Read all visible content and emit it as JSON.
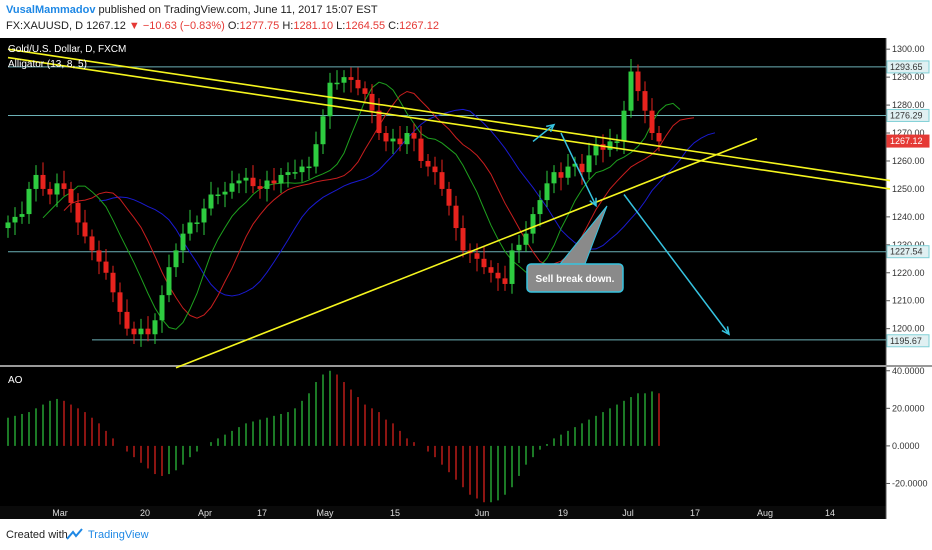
{
  "header": {
    "author": "VusalMammadov",
    "published_text": "published on TradingView.com, June 11, 2017 15:07 EST",
    "symbol": "FX:XAUUSD, D",
    "last": "1267.12",
    "change": "−10.63 (−0.83%)",
    "o_label": "O:",
    "o_value": "1277.75",
    "h_label": "H:",
    "h_value": "1281.10",
    "l_label": "L:",
    "l_value": "1264.55",
    "c_label": "C:",
    "c_value": "1267.12"
  },
  "pane": {
    "title": "Gold/U.S. Dollar, D, FXCM",
    "indicator": "Alligator (13, 8, 5)",
    "ao_label": "AO"
  },
  "annotation": {
    "text": "Sell break down."
  },
  "footer": {
    "created_with": "Created with",
    "brand": "TradingView"
  },
  "colors": {
    "background": "#000000",
    "bull": "#2ecc40",
    "bear": "#e8231e",
    "trendline": "#f5f51e",
    "arrow": "#36c3e0",
    "level": "#7fd0d6",
    "jaw": "#1a1ad0",
    "teeth": "#c81e1e",
    "lips": "#1ea01e"
  },
  "chart_data": [
    {
      "type": "candlestick",
      "title": "Gold/U.S. Dollar, D, FXCM",
      "y_axis_ticks": [
        1200,
        1210,
        1220,
        1230,
        1240,
        1250,
        1260,
        1270,
        1280,
        1290,
        1300
      ],
      "ylim": [
        1187,
        1304
      ],
      "x_tick_labels": [
        "Mar",
        "20",
        "Apr",
        "17",
        "May",
        "15",
        "Jun",
        "19",
        "Jul",
        "17",
        "Aug",
        "14"
      ],
      "price_labels": [
        {
          "value": 1293.65,
          "text": "1293.65",
          "style": "level"
        },
        {
          "value": 1276.29,
          "text": "1276.29",
          "style": "level"
        },
        {
          "value": 1267.12,
          "text": "1267.12",
          "style": "last"
        },
        {
          "value": 1227.54,
          "text": "1227.54",
          "style": "level"
        },
        {
          "value": 1195.67,
          "text": "1195.67",
          "style": "level"
        }
      ],
      "closes": [
        1238,
        1240,
        1241,
        1250,
        1255,
        1250,
        1248,
        1252,
        1250,
        1245,
        1238,
        1233,
        1228,
        1224,
        1220,
        1213,
        1206,
        1200,
        1198,
        1200,
        1198,
        1203,
        1212,
        1222,
        1228,
        1234,
        1238,
        1238,
        1243,
        1248,
        1248,
        1249,
        1252,
        1253,
        1254,
        1251,
        1250,
        1253,
        1252,
        1255,
        1256,
        1256,
        1258,
        1258,
        1266,
        1276,
        1288,
        1288,
        1290,
        1289,
        1286,
        1284,
        1278,
        1270,
        1267,
        1268,
        1266,
        1270,
        1268,
        1260,
        1258,
        1256,
        1250,
        1244,
        1236,
        1228,
        1227,
        1225,
        1222,
        1220,
        1218,
        1216,
        1228,
        1230,
        1234,
        1241,
        1246,
        1252,
        1256,
        1254,
        1258,
        1259,
        1256,
        1262,
        1266,
        1264,
        1267,
        1267,
        1278,
        1292,
        1285,
        1278,
        1270,
        1267
      ],
      "alligator": {
        "jaw_period": 13,
        "teeth_period": 8,
        "lips_period": 5
      },
      "trendlines": [
        {
          "from": [
            0,
            1300
          ],
          "to": [
            126,
            1253
          ]
        },
        {
          "from": [
            0,
            1297
          ],
          "to": [
            126,
            1250
          ]
        },
        {
          "from": [
            24,
            1186
          ],
          "to": [
            107,
            1268
          ]
        },
        {
          "from": [
            12,
            1196
          ],
          "to": [
            126,
            1196
          ],
          "style": "level"
        },
        {
          "from": [
            0,
            1293.65
          ],
          "to": [
            126,
            1293.65
          ],
          "style": "level"
        },
        {
          "from": [
            0,
            1276.29
          ],
          "to": [
            126,
            1276.29
          ],
          "style": "level"
        },
        {
          "from": [
            0,
            1227.54
          ],
          "to": [
            126,
            1227.54
          ],
          "style": "level"
        }
      ],
      "arrows": [
        {
          "from": [
            75,
            1267
          ],
          "to": [
            78,
            1273
          ]
        },
        {
          "from": [
            79,
            1270
          ],
          "to": [
            84,
            1244
          ]
        },
        {
          "from": [
            88,
            1248
          ],
          "to": [
            103,
            1198
          ]
        }
      ]
    },
    {
      "type": "bar",
      "title": "AO",
      "y_axis_ticks": [
        -20,
        0,
        20,
        40
      ],
      "ylim": [
        -32,
        42
      ],
      "values": [
        15,
        16,
        17,
        18,
        20,
        22,
        24,
        25,
        24,
        22,
        20,
        18,
        15,
        12,
        8,
        4,
        0,
        -3,
        -6,
        -9,
        -12,
        -15,
        -16,
        -15,
        -13,
        -10,
        -6,
        -3,
        0,
        2,
        4,
        6,
        8,
        10,
        12,
        13,
        14,
        15,
        16,
        17,
        18,
        20,
        24,
        28,
        34,
        38,
        40,
        38,
        34,
        30,
        26,
        22,
        20,
        18,
        14,
        12,
        8,
        4,
        2,
        0,
        -3,
        -6,
        -10,
        -14,
        -18,
        -22,
        -26,
        -28,
        -30,
        -30,
        -29,
        -26,
        -22,
        -16,
        -10,
        -6,
        -2,
        1,
        4,
        6,
        8,
        10,
        12,
        14,
        16,
        18,
        20,
        22,
        24,
        26,
        28,
        28,
        29,
        28
      ]
    }
  ]
}
